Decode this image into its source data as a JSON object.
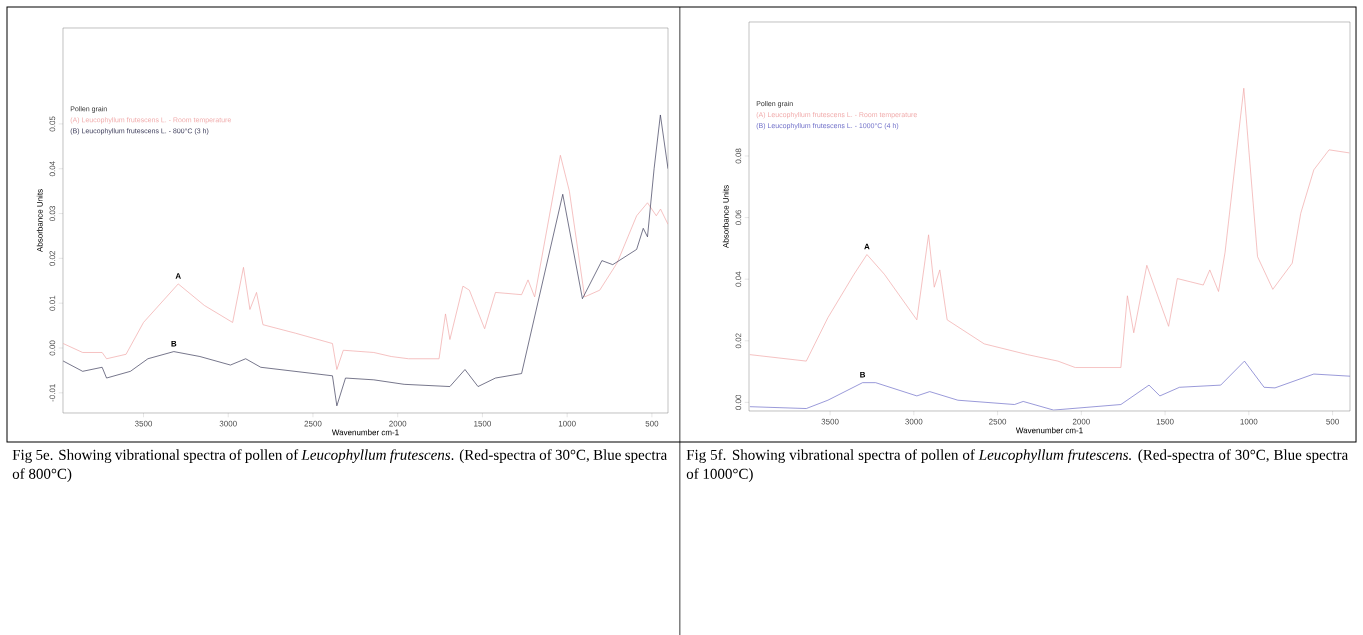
{
  "chart_data": [
    {
      "type": "line",
      "xlabel": "Wavenumber cm-1",
      "ylabel": "Absorbance Units",
      "legend_title": "Pollen grain",
      "legend": "top left",
      "xlim": [
        3975,
        405
      ],
      "ylim": [
        -0.0145,
        0.0714
      ],
      "xticks": [
        3500,
        3000,
        2500,
        2000,
        1500,
        1000,
        500
      ],
      "yticks": [
        {
          "value": -0.01,
          "label": "-0.01"
        },
        {
          "value": 0,
          "label": "0.00"
        },
        {
          "value": 0.01,
          "label": "0.01"
        },
        {
          "value": 0.02,
          "label": "0.02"
        },
        {
          "value": 0.03,
          "label": "0.03"
        },
        {
          "value": 0.04,
          "label": "0.04"
        },
        {
          "value": 0.05,
          "label": "0.05"
        }
      ],
      "series": [
        {
          "name": "(A) Leucophyllum frutescens L. - Room temperature",
          "color": "#f0a8a8",
          "x": [
            3974,
            3859,
            3744,
            3718,
            3603,
            3500,
            3295,
            3141,
            2974,
            2910,
            2872,
            2833,
            2795,
            2603,
            2385,
            2359,
            2321,
            2141,
            2038,
            1936,
            1756,
            1718,
            1692,
            1615,
            1577,
            1487,
            1423,
            1269,
            1231,
            1192,
            1040,
            987,
            897,
            808,
            705,
            590,
            526,
            474,
            449,
            405
          ],
          "values": [
            0.001,
            -0.001,
            -0.001,
            -0.0024,
            -0.0014,
            0.0057,
            0.0143,
            0.0095,
            0.0057,
            0.018,
            0.0086,
            0.0124,
            0.0052,
            0.0033,
            0.001,
            -0.0048,
            -0.0005,
            -0.001,
            -0.0019,
            -0.0024,
            -0.0024,
            0.0076,
            0.0019,
            0.0138,
            0.0129,
            0.0043,
            0.0124,
            0.0119,
            0.0152,
            0.0114,
            0.043,
            0.035,
            0.0114,
            0.0129,
            0.019,
            0.0295,
            0.0324,
            0.0295,
            0.031,
            0.0276
          ]
        },
        {
          "name": "(B) Leucophyllum frutescens L. - 800°C (3 h)",
          "color": "#3c3c5a",
          "x": [
            3974,
            3859,
            3744,
            3718,
            3577,
            3474,
            3321,
            3167,
            2987,
            2897,
            2808,
            2385,
            2359,
            2308,
            2141,
            1962,
            1692,
            1603,
            1526,
            1423,
            1269,
            1026,
            910,
            795,
            731,
            590,
            551,
            526,
            487,
            450,
            405
          ],
          "values": [
            -0.0029,
            -0.0052,
            -0.0043,
            -0.0067,
            -0.0052,
            -0.0024,
            -0.0008,
            -0.0019,
            -0.0038,
            -0.0024,
            -0.0043,
            -0.0062,
            -0.0129,
            -0.0067,
            -0.0071,
            -0.0081,
            -0.0086,
            -0.0048,
            -0.0086,
            -0.0067,
            -0.0057,
            0.0343,
            0.011,
            0.0195,
            0.0186,
            0.022,
            0.0267,
            0.0248,
            0.04,
            0.052,
            0.04
          ]
        }
      ],
      "annotations": [
        {
          "text": "A",
          "x": 3295,
          "y": 0.0143
        },
        {
          "text": "B",
          "x": 3321,
          "y": -0.0008
        },
        "Fig 5e. Showing vibrational spectra of pollen of *Leucophyllum frutescens*. (Red-spectra of 30°C, Blue spectra of 800°C)"
      ]
    },
    {
      "type": "line",
      "xlabel": "Wavenumber cm-1",
      "ylabel": "Absorbance Units",
      "legend_title": "Pollen grain",
      "legend": "top left",
      "xlim": [
        3984,
        396
      ],
      "ylim": [
        -0.0028,
        0.1235
      ],
      "xticks": [
        3500,
        3000,
        2500,
        2000,
        1500,
        1000,
        500
      ],
      "yticks": [
        {
          "value": 0,
          "label": "0.00"
        },
        {
          "value": 0.02,
          "label": "0.02"
        },
        {
          "value": 0.04,
          "label": "0.04"
        },
        {
          "value": 0.06,
          "label": "0.06"
        },
        {
          "value": 0.08,
          "label": "0.08"
        }
      ],
      "series": [
        {
          "name": "(A) Leucophyllum frutescens L. - Room temperature",
          "color": "#f0a8a8",
          "x": [
            3979,
            3642,
            3513,
            3357,
            3280,
            3176,
            2982,
            2912,
            2878,
            2845,
            2801,
            2580,
            2321,
            2140,
            2036,
            1764,
            1725,
            1687,
            1609,
            1479,
            1427,
            1272,
            1233,
            1181,
            1142,
            1030,
            948,
            857,
            741,
            690,
            612,
            521,
            400
          ],
          "values": [
            0.0155,
            0.0134,
            0.0275,
            0.0416,
            0.048,
            0.0416,
            0.0268,
            0.0544,
            0.0374,
            0.043,
            0.0268,
            0.019,
            0.0155,
            0.0134,
            0.0113,
            0.0113,
            0.0346,
            0.0226,
            0.0445,
            0.0247,
            0.0402,
            0.0381,
            0.043,
            0.036,
            0.0487,
            0.102,
            0.0473,
            0.0367,
            0.0452,
            0.0614,
            0.0755,
            0.082,
            0.081
          ]
        },
        {
          "name": "(B) Leucophyllum frutescens L. - 1000°C (4 h)",
          "color": "#6e6ec8",
          "x": [
            3979,
            3642,
            3513,
            3306,
            3228,
            2982,
            2905,
            2737,
            2399,
            2347,
            2166,
            1764,
            1596,
            1531,
            1414,
            1168,
            1026,
            909,
            844,
            612,
            396
          ],
          "values": [
            -0.0014,
            -0.002,
            0.0007,
            0.0064,
            0.0064,
            0.0021,
            0.0035,
            0.0007,
            -0.0007,
            0.0003,
            -0.0025,
            -0.0007,
            0.0056,
            0.0021,
            0.0049,
            0.0056,
            0.0134,
            0.0049,
            0.0047,
            0.0092,
            0.0085
          ]
        }
      ],
      "annotations": [
        {
          "text": "A",
          "x": 3280,
          "y": 0.048
        },
        {
          "text": "B",
          "x": 3306,
          "y": 0.0064
        },
        "Fig 5f. Showing vibrational spectra of pollen of *Leucophyllum frutescens.* (Red-spectra of 30°C, Blue spectra of 1000°C)"
      ]
    }
  ]
}
